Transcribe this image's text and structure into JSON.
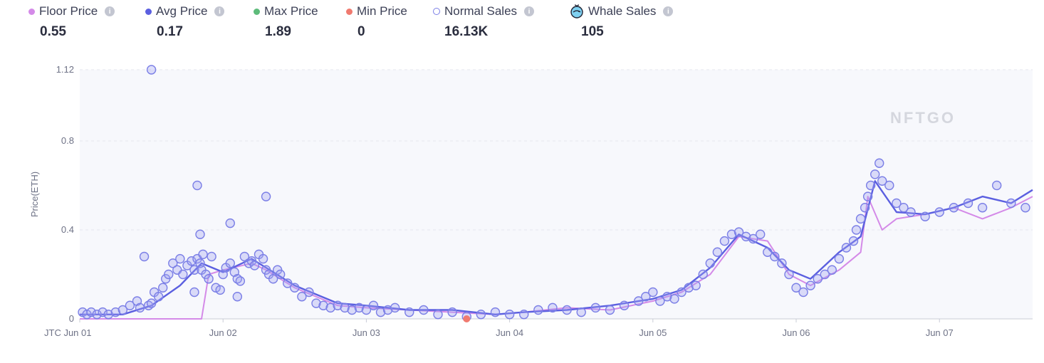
{
  "legend": {
    "floor": {
      "label": "Floor Price",
      "value": "0.55",
      "color": "#d48ae8"
    },
    "avg": {
      "label": "Avg Price",
      "value": "0.17",
      "color": "#5b5fe0"
    },
    "max": {
      "label": "Max Price",
      "value": "1.89",
      "color": "#5dbb7a"
    },
    "min": {
      "label": "Min Price",
      "value": "0",
      "color": "#f07a6f"
    },
    "normal": {
      "label": "Normal Sales",
      "value": "16.13K",
      "color": "#7b7fe6"
    },
    "whale": {
      "label": "Whale Sales",
      "value": "105",
      "icon": "whale-icon"
    },
    "info_icon": "i"
  },
  "watermark": "NFTGO",
  "chart_data": {
    "type": "scatter",
    "ylabel": "Price(ETH)",
    "ylim": [
      0,
      1.12
    ],
    "yticks": [
      "0",
      "0.4",
      "0.8",
      "1.12"
    ],
    "yticks_values": [
      0,
      0.4,
      0.8,
      1.12
    ],
    "xlim": [
      0,
      6.65
    ],
    "xticks": [
      "JTC Jun 01",
      "Jun 02",
      "Jun 03",
      "Jun 04",
      "Jun 05",
      "Jun 06",
      "Jun 07"
    ],
    "xticks_values": [
      0,
      1,
      2,
      3,
      4,
      5,
      6
    ],
    "grid": "horizontal-dashed",
    "series": [
      {
        "key": "floor",
        "kind": "line",
        "color": "#d48ae8",
        "x": [
          0,
          0.3,
          0.6,
          0.85,
          0.9,
          1.0,
          1.2,
          1.3,
          1.5,
          1.8,
          2.0,
          2.3,
          2.6,
          2.9,
          3.1,
          3.4,
          3.7,
          4.0,
          4.2,
          4.4,
          4.6,
          4.8,
          4.95,
          5.1,
          5.3,
          5.45,
          5.5,
          5.6,
          5.7,
          5.9,
          6.1,
          6.3,
          6.5,
          6.65
        ],
        "y": [
          0,
          0,
          0,
          0,
          0.2,
          0.22,
          0.25,
          0.22,
          0.14,
          0.06,
          0.05,
          0.04,
          0.03,
          0.02,
          0.03,
          0.05,
          0.04,
          0.08,
          0.12,
          0.2,
          0.37,
          0.35,
          0.2,
          0.15,
          0.22,
          0.3,
          0.55,
          0.4,
          0.45,
          0.47,
          0.5,
          0.45,
          0.5,
          0.55
        ]
      },
      {
        "key": "avg",
        "kind": "line",
        "color": "#5b5fe0",
        "x": [
          0,
          0.3,
          0.5,
          0.7,
          0.85,
          1.0,
          1.2,
          1.3,
          1.5,
          1.8,
          2.0,
          2.3,
          2.6,
          2.9,
          3.1,
          3.4,
          3.7,
          4.0,
          4.2,
          4.4,
          4.6,
          4.8,
          4.95,
          5.1,
          5.3,
          5.45,
          5.55,
          5.7,
          5.9,
          6.1,
          6.3,
          6.5,
          6.65
        ],
        "y": [
          0.02,
          0.02,
          0.06,
          0.15,
          0.25,
          0.21,
          0.27,
          0.23,
          0.15,
          0.07,
          0.06,
          0.04,
          0.04,
          0.02,
          0.03,
          0.04,
          0.06,
          0.09,
          0.13,
          0.23,
          0.38,
          0.32,
          0.22,
          0.18,
          0.3,
          0.37,
          0.62,
          0.48,
          0.47,
          0.5,
          0.55,
          0.52,
          0.58
        ]
      },
      {
        "key": "normal",
        "kind": "scatter",
        "color": "#7b7fe6",
        "x": [
          0.02,
          0.05,
          0.08,
          0.12,
          0.16,
          0.2,
          0.25,
          0.3,
          0.35,
          0.4,
          0.42,
          0.45,
          0.48,
          0.5,
          0.52,
          0.55,
          0.58,
          0.6,
          0.62,
          0.65,
          0.68,
          0.7,
          0.72,
          0.75,
          0.78,
          0.8,
          0.82,
          0.84,
          0.85,
          0.86,
          0.88,
          0.9,
          0.92,
          0.95,
          0.98,
          1.0,
          1.02,
          1.05,
          1.08,
          1.1,
          1.12,
          1.15,
          1.18,
          1.2,
          1.22,
          1.25,
          1.28,
          1.3,
          1.32,
          1.35,
          1.38,
          1.4,
          1.45,
          1.5,
          1.55,
          1.6,
          1.65,
          1.7,
          1.75,
          1.8,
          1.85,
          1.9,
          1.95,
          2.0,
          2.05,
          2.1,
          2.15,
          2.2,
          2.3,
          2.4,
          2.5,
          2.6,
          2.7,
          2.8,
          2.9,
          3.0,
          3.1,
          3.2,
          3.3,
          3.4,
          3.5,
          3.6,
          3.7,
          3.8,
          3.9,
          3.95,
          4.0,
          4.05,
          4.1,
          4.15,
          4.2,
          4.25,
          4.3,
          4.35,
          4.4,
          4.45,
          4.5,
          4.55,
          4.6,
          4.65,
          4.7,
          4.75,
          4.8,
          4.85,
          4.9,
          4.95,
          5.0,
          5.05,
          5.1,
          5.15,
          5.2,
          5.25,
          5.3,
          5.35,
          5.4,
          5.42,
          5.45,
          5.48,
          5.5,
          5.52,
          5.55,
          5.58,
          5.6,
          5.65,
          5.7,
          5.75,
          5.8,
          5.9,
          6.0,
          6.1,
          6.2,
          6.3,
          6.4,
          6.5,
          6.6,
          0.5,
          0.82,
          0.84,
          1.05,
          1.3,
          1.1,
          0.8
        ],
        "y": [
          0.03,
          0.02,
          0.03,
          0.02,
          0.03,
          0.02,
          0.03,
          0.04,
          0.06,
          0.08,
          0.05,
          0.28,
          0.06,
          0.07,
          0.12,
          0.1,
          0.14,
          0.18,
          0.2,
          0.25,
          0.22,
          0.27,
          0.2,
          0.24,
          0.26,
          0.22,
          0.27,
          0.25,
          0.22,
          0.29,
          0.2,
          0.18,
          0.28,
          0.14,
          0.13,
          0.2,
          0.23,
          0.25,
          0.21,
          0.18,
          0.17,
          0.28,
          0.25,
          0.26,
          0.24,
          0.29,
          0.27,
          0.22,
          0.2,
          0.18,
          0.22,
          0.2,
          0.16,
          0.14,
          0.1,
          0.12,
          0.07,
          0.06,
          0.05,
          0.06,
          0.05,
          0.04,
          0.05,
          0.04,
          0.06,
          0.03,
          0.04,
          0.05,
          0.03,
          0.04,
          0.02,
          0.03,
          0.01,
          0.02,
          0.03,
          0.02,
          0.02,
          0.04,
          0.05,
          0.04,
          0.03,
          0.05,
          0.04,
          0.06,
          0.08,
          0.1,
          0.12,
          0.08,
          0.1,
          0.09,
          0.12,
          0.14,
          0.15,
          0.2,
          0.25,
          0.3,
          0.35,
          0.38,
          0.39,
          0.37,
          0.36,
          0.38,
          0.3,
          0.28,
          0.25,
          0.2,
          0.14,
          0.12,
          0.15,
          0.18,
          0.2,
          0.22,
          0.27,
          0.32,
          0.35,
          0.4,
          0.45,
          0.5,
          0.55,
          0.6,
          0.65,
          0.7,
          0.62,
          0.6,
          0.52,
          0.5,
          0.48,
          0.46,
          0.48,
          0.5,
          0.52,
          0.5,
          0.6,
          0.52,
          0.5,
          1.12,
          0.6,
          0.38,
          0.43,
          0.55,
          0.1,
          0.12
        ]
      },
      {
        "key": "min",
        "kind": "scatter",
        "color": "#f07a6f",
        "x": [
          2.7
        ],
        "y": [
          0
        ]
      }
    ]
  }
}
